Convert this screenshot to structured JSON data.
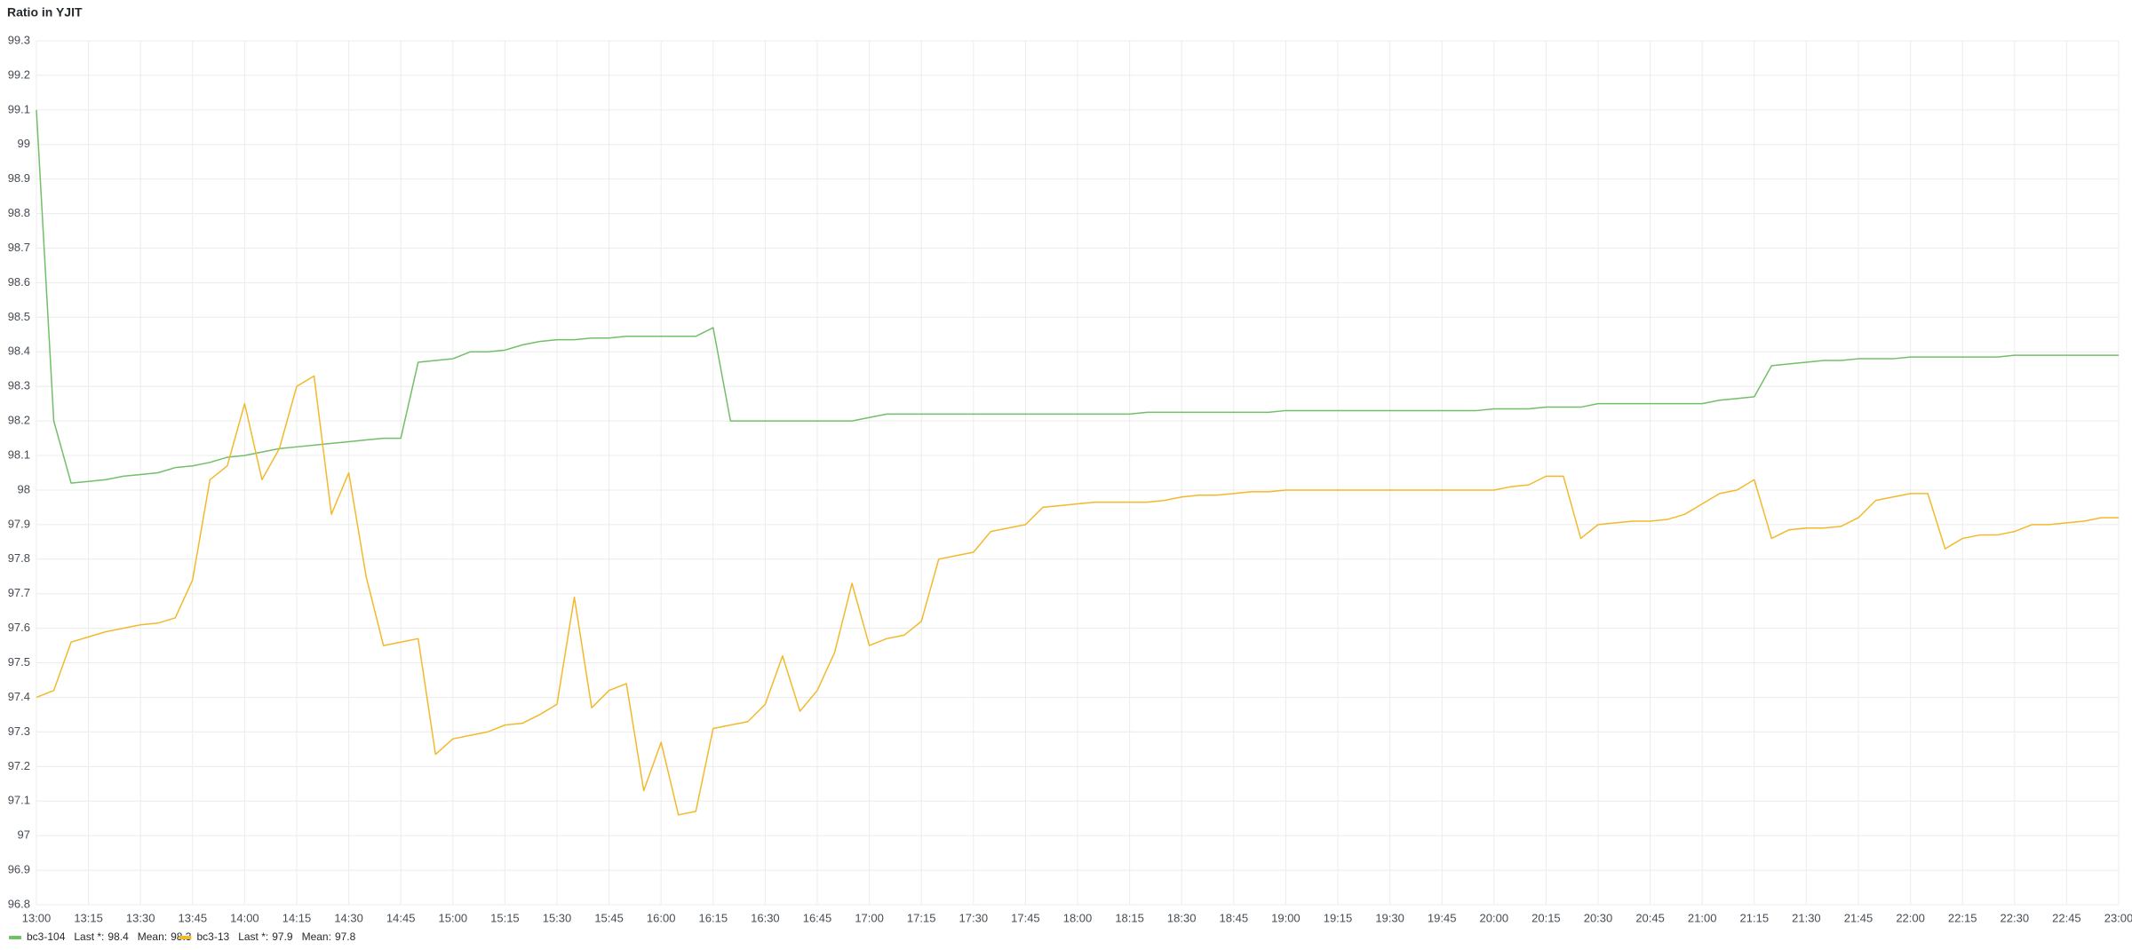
{
  "chart_data": {
    "type": "line",
    "title": "Ratio in YJIT",
    "x": [
      "13:00",
      "13:05",
      "13:10",
      "13:15",
      "13:20",
      "13:25",
      "13:30",
      "13:35",
      "13:40",
      "13:45",
      "13:50",
      "13:55",
      "14:00",
      "14:05",
      "14:10",
      "14:15",
      "14:20",
      "14:25",
      "14:30",
      "14:35",
      "14:40",
      "14:45",
      "14:50",
      "14:55",
      "15:00",
      "15:05",
      "15:10",
      "15:15",
      "15:20",
      "15:25",
      "15:30",
      "15:35",
      "15:40",
      "15:45",
      "15:50",
      "15:55",
      "16:00",
      "16:05",
      "16:10",
      "16:15",
      "16:20",
      "16:25",
      "16:30",
      "16:35",
      "16:40",
      "16:45",
      "16:50",
      "16:55",
      "17:00",
      "17:05",
      "17:10",
      "17:15",
      "17:20",
      "17:25",
      "17:30",
      "17:35",
      "17:40",
      "17:45",
      "17:50",
      "17:55",
      "18:00",
      "18:05",
      "18:10",
      "18:15",
      "18:20",
      "18:25",
      "18:30",
      "18:35",
      "18:40",
      "18:45",
      "18:50",
      "18:55",
      "19:00",
      "19:05",
      "19:10",
      "19:15",
      "19:20",
      "19:25",
      "19:30",
      "19:35",
      "19:40",
      "19:45",
      "19:50",
      "19:55",
      "20:00",
      "20:05",
      "20:10",
      "20:15",
      "20:20",
      "20:25",
      "20:30",
      "20:35",
      "20:40",
      "20:45",
      "20:50",
      "20:55",
      "21:00",
      "21:05",
      "21:10",
      "21:15",
      "21:20",
      "21:25",
      "21:30",
      "21:35",
      "21:40",
      "21:45",
      "21:50",
      "21:55",
      "22:00",
      "22:05",
      "22:10",
      "22:15",
      "22:20",
      "22:25",
      "22:30",
      "22:35",
      "22:40",
      "22:45",
      "22:50",
      "22:55",
      "23:00"
    ],
    "series": [
      {
        "name": "bc3-104",
        "color": "#73bf69",
        "legend_stats": [
          {
            "label": "Last *:",
            "value": 98.4
          },
          {
            "label": "Mean:",
            "value": 98.3
          }
        ],
        "values": [
          99.1,
          98.2,
          98.02,
          98.025,
          98.03,
          98.04,
          98.045,
          98.05,
          98.065,
          98.07,
          98.08,
          98.095,
          98.1,
          98.11,
          98.12,
          98.125,
          98.13,
          98.135,
          98.14,
          98.145,
          98.15,
          98.15,
          98.37,
          98.375,
          98.38,
          98.4,
          98.4,
          98.405,
          98.42,
          98.43,
          98.435,
          98.435,
          98.44,
          98.44,
          98.445,
          98.445,
          98.445,
          98.445,
          98.445,
          98.47,
          98.2,
          98.2,
          98.2,
          98.2,
          98.2,
          98.2,
          98.2,
          98.2,
          98.21,
          98.22,
          98.22,
          98.22,
          98.22,
          98.22,
          98.22,
          98.22,
          98.22,
          98.22,
          98.22,
          98.22,
          98.22,
          98.22,
          98.22,
          98.22,
          98.225,
          98.225,
          98.225,
          98.225,
          98.225,
          98.225,
          98.225,
          98.225,
          98.23,
          98.23,
          98.23,
          98.23,
          98.23,
          98.23,
          98.23,
          98.23,
          98.23,
          98.23,
          98.23,
          98.23,
          98.235,
          98.235,
          98.235,
          98.24,
          98.24,
          98.24,
          98.25,
          98.25,
          98.25,
          98.25,
          98.25,
          98.25,
          98.25,
          98.26,
          98.265,
          98.27,
          98.36,
          98.365,
          98.37,
          98.375,
          98.375,
          98.38,
          98.38,
          98.38,
          98.385,
          98.385,
          98.385,
          98.385,
          98.385,
          98.385,
          98.39,
          98.39,
          98.39,
          98.39,
          98.39,
          98.39,
          98.39
        ]
      },
      {
        "name": "bc3-13",
        "color": "#f2b92c",
        "legend_stats": [
          {
            "label": "Last *:",
            "value": 97.9
          },
          {
            "label": "Mean:",
            "value": 97.8
          }
        ],
        "values": [
          97.4,
          97.42,
          97.56,
          97.575,
          97.59,
          97.6,
          97.61,
          97.615,
          97.63,
          97.74,
          98.03,
          98.07,
          98.25,
          98.03,
          98.12,
          98.3,
          98.33,
          97.93,
          98.05,
          97.75,
          97.55,
          97.56,
          97.57,
          97.235,
          97.28,
          97.29,
          97.3,
          97.32,
          97.325,
          97.35,
          97.38,
          97.69,
          97.37,
          97.42,
          97.44,
          97.13,
          97.27,
          97.06,
          97.07,
          97.31,
          97.32,
          97.33,
          97.38,
          97.52,
          97.36,
          97.42,
          97.53,
          97.73,
          97.55,
          97.57,
          97.58,
          97.62,
          97.8,
          97.81,
          97.82,
          97.88,
          97.89,
          97.9,
          97.95,
          97.955,
          97.96,
          97.965,
          97.965,
          97.965,
          97.965,
          97.97,
          97.98,
          97.985,
          97.985,
          97.99,
          97.995,
          97.995,
          98.0,
          98.0,
          98.0,
          98.0,
          98.0,
          98.0,
          98.0,
          98.0,
          98.0,
          98.0,
          98.0,
          98.0,
          98.0,
          98.01,
          98.015,
          98.04,
          98.04,
          97.86,
          97.9,
          97.905,
          97.91,
          97.91,
          97.915,
          97.93,
          97.96,
          97.99,
          98.0,
          98.03,
          97.86,
          97.885,
          97.89,
          97.89,
          97.895,
          97.92,
          97.97,
          97.98,
          97.99,
          97.99,
          97.83,
          97.86,
          97.87,
          97.87,
          97.88,
          97.9,
          97.9,
          97.905,
          97.91,
          97.92,
          97.92
        ]
      }
    ],
    "xlim": [
      "13:00",
      "23:00"
    ],
    "xticks": [
      "13:00",
      "13:15",
      "13:30",
      "13:45",
      "14:00",
      "14:15",
      "14:30",
      "14:45",
      "15:00",
      "15:15",
      "15:30",
      "15:45",
      "16:00",
      "16:15",
      "16:30",
      "16:45",
      "17:00",
      "17:15",
      "17:30",
      "17:45",
      "18:00",
      "18:15",
      "18:30",
      "18:45",
      "19:00",
      "19:15",
      "19:30",
      "19:45",
      "20:00",
      "20:15",
      "20:30",
      "20:45",
      "21:00",
      "21:15",
      "21:30",
      "21:45",
      "22:00",
      "22:15",
      "22:30",
      "22:45",
      "23:00"
    ],
    "ylim": [
      96.8,
      99.3
    ],
    "yticks": [
      96.8,
      96.9,
      97,
      97.1,
      97.2,
      97.3,
      97.4,
      97.5,
      97.6,
      97.7,
      97.8,
      97.9,
      98,
      98.1,
      98.2,
      98.3,
      98.4,
      98.5,
      98.6,
      98.7,
      98.8,
      98.9,
      99,
      99.1,
      99.2,
      99.3
    ],
    "grid": true
  }
}
